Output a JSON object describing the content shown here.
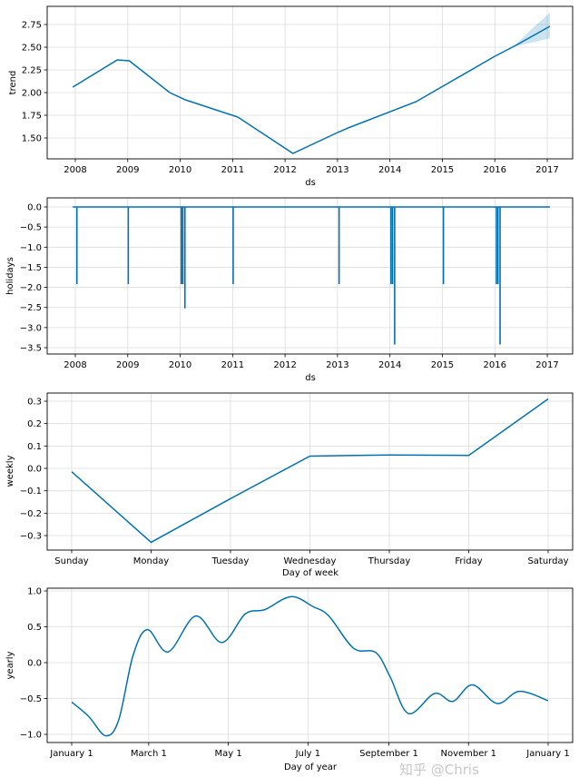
{
  "colors": {
    "line": "#0072B2",
    "band": "#0072B2",
    "grid": "#dcdcdc"
  },
  "watermark": "知乎 @Chris",
  "chart_data": [
    {
      "type": "line",
      "xlabel": "ds",
      "ylabel": "trend",
      "xticks": [
        2008,
        2009,
        2010,
        2011,
        2012,
        2013,
        2014,
        2015,
        2016,
        2017
      ],
      "yticks": [
        1.5,
        1.75,
        2.0,
        2.25,
        2.5,
        2.75
      ],
      "ytick_labels": [
        "1.50",
        "1.75",
        "2.00",
        "2.25",
        "2.50",
        "2.75"
      ],
      "grid": true,
      "x": [
        2007.95,
        2008.8,
        2009.03,
        2009.8,
        2010.1,
        2011.1,
        2012.15,
        2013.0,
        2013.2,
        2014.5,
        2016.0,
        2016.4,
        2017.05
      ],
      "y": [
        2.06,
        2.36,
        2.35,
        2.0,
        1.92,
        1.73,
        1.33,
        1.56,
        1.61,
        1.9,
        2.4,
        2.52,
        2.73
      ],
      "uncertainty": {
        "x": [
          2016.4,
          2016.7,
          2017.05
        ],
        "upper": [
          2.53,
          2.7,
          2.88
        ],
        "lower": [
          2.51,
          2.55,
          2.6
        ]
      }
    },
    {
      "type": "line",
      "xlabel": "ds",
      "ylabel": "holidays",
      "xticks": [
        2008,
        2009,
        2010,
        2011,
        2012,
        2013,
        2014,
        2015,
        2016,
        2017
      ],
      "yticks": [
        0.0,
        -0.5,
        -1.0,
        -1.5,
        -2.0,
        -2.5,
        -3.0,
        -3.5
      ],
      "ytick_labels": [
        "0.0",
        "−0.5",
        "−1.0",
        "−1.5",
        "−2.0",
        "−2.5",
        "−3.0",
        "−3.5"
      ],
      "grid": true,
      "x_range": [
        2007.95,
        2017.05
      ],
      "baseline": 0.0,
      "spikes": [
        {
          "x": 2008.03,
          "y": -1.92
        },
        {
          "x": 2009.01,
          "y": -1.92
        },
        {
          "x": 2010.02,
          "y": -1.92
        },
        {
          "x": 2010.05,
          "y": -1.92
        },
        {
          "x": 2010.09,
          "y": -2.52
        },
        {
          "x": 2011.01,
          "y": -1.92
        },
        {
          "x": 2013.03,
          "y": -1.92
        },
        {
          "x": 2014.02,
          "y": -1.92
        },
        {
          "x": 2014.05,
          "y": -1.92
        },
        {
          "x": 2014.09,
          "y": -3.42
        },
        {
          "x": 2015.02,
          "y": -1.92
        },
        {
          "x": 2016.03,
          "y": -1.92
        },
        {
          "x": 2016.06,
          "y": -1.92
        },
        {
          "x": 2016.1,
          "y": -3.42
        }
      ]
    },
    {
      "type": "line",
      "xlabel": "Day of week",
      "ylabel": "weekly",
      "categories": [
        "Sunday",
        "Monday",
        "Tuesday",
        "Wednesday",
        "Thursday",
        "Friday",
        "Saturday"
      ],
      "values": [
        -0.015,
        -0.33,
        -0.135,
        0.055,
        0.06,
        0.058,
        0.31
      ],
      "yticks": [
        -0.3,
        -0.2,
        -0.1,
        0.0,
        0.1,
        0.2,
        0.3
      ],
      "ytick_labels": [
        "−0.3",
        "−0.2",
        "−0.1",
        "0.0",
        "0.1",
        "0.2",
        "0.3"
      ],
      "grid": true
    },
    {
      "type": "line",
      "xlabel": "Day of year",
      "ylabel": "yearly",
      "xtick_days": [
        0,
        59,
        120,
        181,
        243,
        304,
        365
      ],
      "xtick_labels": [
        "January 1",
        "March 1",
        "May 1",
        "July 1",
        "September 1",
        "November 1",
        "January 1"
      ],
      "yticks": [
        -1.0,
        -0.5,
        0.0,
        0.5,
        1.0
      ],
      "ytick_labels": [
        "−1.0",
        "−0.5",
        "0.0",
        "0.5",
        "1.0"
      ],
      "grid": true,
      "x": [
        0,
        13,
        26,
        36,
        47,
        58,
        74,
        95,
        115,
        133,
        148,
        168,
        185,
        197,
        216,
        233,
        244,
        258,
        278,
        292,
        307,
        326,
        343,
        365
      ],
      "y": [
        -0.55,
        -0.75,
        -1.02,
        -0.8,
        0.1,
        0.46,
        0.15,
        0.65,
        0.28,
        0.68,
        0.74,
        0.92,
        0.78,
        0.65,
        0.2,
        0.14,
        -0.2,
        -0.71,
        -0.43,
        -0.54,
        -0.31,
        -0.57,
        -0.4,
        -0.53
      ]
    }
  ]
}
